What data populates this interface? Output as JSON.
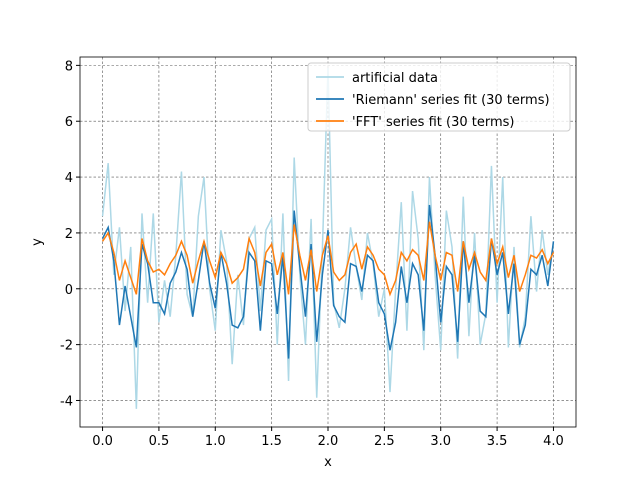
{
  "chart_data": {
    "type": "line",
    "xlabel": "x",
    "ylabel": "y",
    "x": [
      0,
      0.05,
      0.1,
      0.15,
      0.2,
      0.25,
      0.3,
      0.35,
      0.4,
      0.45,
      0.5,
      0.55,
      0.6,
      0.65,
      0.7,
      0.75,
      0.8,
      0.85,
      0.9,
      0.95,
      1,
      1.05,
      1.1,
      1.15,
      1.2,
      1.25,
      1.3,
      1.35,
      1.4,
      1.45,
      1.5,
      1.55,
      1.6,
      1.65,
      1.7,
      1.75,
      1.8,
      1.85,
      1.9,
      1.95,
      2,
      2.05,
      2.1,
      2.15,
      2.2,
      2.25,
      2.3,
      2.35,
      2.4,
      2.45,
      2.5,
      2.55,
      2.6,
      2.65,
      2.7,
      2.75,
      2.8,
      2.85,
      2.9,
      2.95,
      3,
      3.05,
      3.1,
      3.15,
      3.2,
      3.25,
      3.3,
      3.35,
      3.4,
      3.45,
      3.5,
      3.55,
      3.6,
      3.65,
      3.7,
      3.75,
      3.8,
      3.85,
      3.9,
      3.95,
      4
    ],
    "series": [
      {
        "name": "artificial data",
        "color": "#add8e6",
        "values": [
          2.6,
          4.5,
          0.5,
          2.2,
          -0.8,
          1.5,
          -4.3,
          2.7,
          -0.5,
          2.7,
          -1.2,
          0.3,
          -1.0,
          1.2,
          4.2,
          -0.2,
          -1.0,
          2.6,
          4.0,
          0.0,
          -1.5,
          2.1,
          1.0,
          -2.7,
          0.5,
          -1.3,
          1.8,
          2.2,
          -0.8,
          2.1,
          2.5,
          -2.0,
          2.7,
          -3.3,
          4.7,
          0.5,
          -2.0,
          2.5,
          -3.9,
          1.4,
          7.9,
          -0.5,
          -1.4,
          0.0,
          2.2,
          0.8,
          -0.4,
          2.0,
          0.9,
          -1.0,
          0.0,
          -3.7,
          0.0,
          3.1,
          -1.5,
          3.5,
          1.8,
          -2.2,
          4.0,
          0.5,
          -2.2,
          2.8,
          1.5,
          -2.5,
          3.3,
          -1.7,
          2.0,
          -2.0,
          -0.9,
          4.4,
          -0.5,
          4.0,
          -2.1,
          1.5,
          -2.1,
          -1.0,
          2.6,
          -0.1,
          2.1,
          0.5,
          1.6
        ]
      },
      {
        "name": "'Riemann' series fit (30 terms)",
        "color": "#1f77b4",
        "values": [
          1.8,
          2.2,
          1.0,
          -1.3,
          0.1,
          -1.0,
          -2.1,
          1.6,
          0.9,
          -0.5,
          -0.5,
          -0.9,
          0.2,
          0.6,
          1.3,
          0.7,
          -1.0,
          0.3,
          1.7,
          0.2,
          -0.7,
          1.3,
          0.2,
          -1.3,
          -1.4,
          -1.0,
          1.3,
          1.0,
          -1.5,
          1.0,
          0.9,
          -0.9,
          1.2,
          -2.5,
          2.8,
          0.8,
          -1.0,
          1.6,
          -1.9,
          0.5,
          2.1,
          -0.6,
          -1.0,
          -1.2,
          0.9,
          0.8,
          -0.1,
          1.2,
          1.0,
          -0.5,
          -0.9,
          -2.2,
          -1.2,
          0.8,
          -0.5,
          0.9,
          0.5,
          -1.5,
          3.0,
          1.2,
          -1.2,
          0.8,
          0.5,
          -1.9,
          1.7,
          -0.5,
          1.2,
          -0.8,
          -1.0,
          1.8,
          0.5,
          1.3,
          -0.9,
          0.9,
          -2.0,
          -1.3,
          0.7,
          0.5,
          1.2,
          0.1,
          1.7
        ]
      },
      {
        "name": "'FFT' series fit (30 terms)",
        "color": "#ff7f0e",
        "values": [
          1.7,
          2.0,
          1.3,
          0.3,
          1.0,
          0.4,
          -0.2,
          1.8,
          1.0,
          0.6,
          0.7,
          0.5,
          0.9,
          1.2,
          1.7,
          1.2,
          0.2,
          1.0,
          1.7,
          1.0,
          0.4,
          1.3,
          0.9,
          0.2,
          0.4,
          0.7,
          1.8,
          1.3,
          0.1,
          1.3,
          1.6,
          0.5,
          1.3,
          -0.2,
          2.3,
          1.2,
          0.3,
          1.4,
          -0.1,
          1.2,
          1.9,
          0.6,
          0.3,
          0.5,
          1.3,
          1.6,
          0.7,
          1.5,
          1.2,
          0.7,
          0.5,
          -0.2,
          0.3,
          1.3,
          1.0,
          1.4,
          1.2,
          0.3,
          2.4,
          1.2,
          0.3,
          1.3,
          1.2,
          -0.1,
          1.7,
          0.7,
          1.3,
          0.6,
          0.3,
          1.8,
          0.9,
          1.5,
          0.4,
          1.2,
          -0.1,
          0.5,
          1.2,
          1.1,
          1.4,
          0.9,
          1.3
        ]
      }
    ],
    "xlim": [
      -0.2,
      4.2
    ],
    "ylim": [
      -4.95,
      8.3
    ],
    "xticks": [
      {
        "value": 0,
        "label": "0.0"
      },
      0.5,
      {
        "value": 1,
        "label": "1.0"
      },
      1.5,
      {
        "value": 2,
        "label": "2.0"
      },
      2.5,
      {
        "value": 3,
        "label": "3.0"
      },
      3.5,
      {
        "value": 4,
        "label": "4.0"
      }
    ],
    "yticks": [
      -4,
      -2,
      0,
      2,
      4,
      6,
      8
    ],
    "grid": true,
    "legend": "upper right"
  }
}
